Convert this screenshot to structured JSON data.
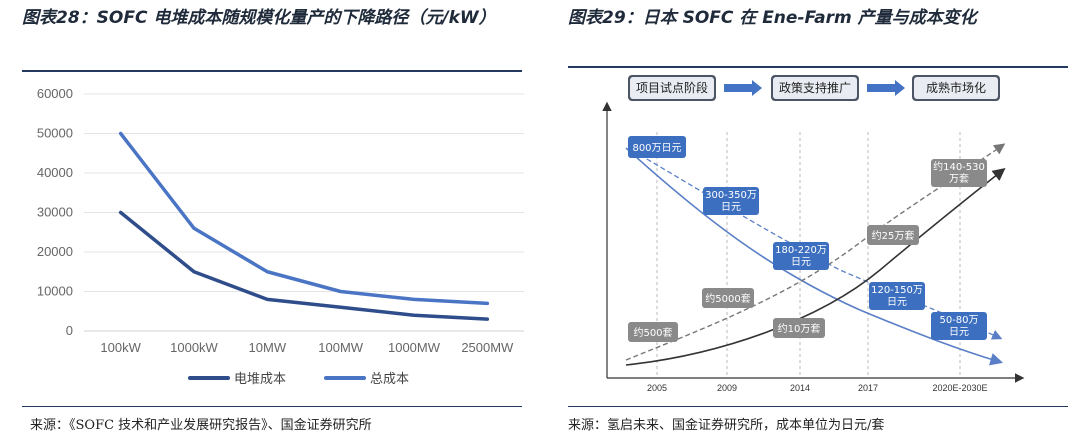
{
  "left_figure": {
    "title": "图表28：SOFC 电堆成本随规模化量产的下降路径（元/kW）",
    "source": "来源：《SOFC 技术和产业发展研究报告》、国金证券研究所"
  },
  "right_figure": {
    "title": "图表29：日本 SOFC 在 Ene-Farm 产量与成本变化",
    "source": "来源：氢启未来、国金证券研究所，成本单位为日元/套"
  },
  "chart_data": [
    {
      "type": "line",
      "categories": [
        "100kW",
        "1000kW",
        "10MW",
        "100MW",
        "1000MW",
        "2500MW"
      ],
      "series": [
        {
          "name": "电堆成本",
          "values": [
            30000,
            15000,
            8000,
            6000,
            4000,
            3000
          ],
          "color": "#2e4d8a"
        },
        {
          "name": "总成本",
          "values": [
            50000,
            26000,
            15000,
            10000,
            8000,
            7000
          ],
          "color": "#4a74c4"
        }
      ],
      "ylim": [
        0,
        60000
      ],
      "yticks": [
        "60000",
        "50000",
        "40000",
        "30000",
        "20000",
        "10000",
        "0"
      ],
      "grid": true,
      "legend_position": "bottom"
    },
    {
      "type": "line",
      "x_ticks": [
        "2005",
        "2009",
        "2014",
        "2017",
        "2020E-2030E"
      ],
      "phases": [
        "项目试点阶段",
        "政策支持推广",
        "成熟市场化"
      ],
      "cost_labels": [
        "800万日元",
        "300-350万日元",
        "180-220万日元",
        "120-150万日元",
        "50-80万日元"
      ],
      "volume_labels": [
        "约500套",
        "约5000套",
        "约10万套",
        "约25万套",
        "约140-530万套"
      ],
      "colors": {
        "phase_box": "#4b5563",
        "cost_box": "#3d6fc0",
        "volume_box": "#8a8a8a",
        "arrow": "#4472c4"
      }
    }
  ]
}
